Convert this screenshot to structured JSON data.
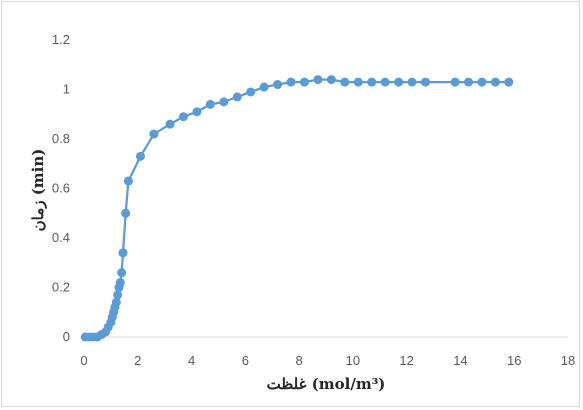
{
  "chart_data": {
    "type": "line",
    "title": "",
    "xlabel": "غلظت (mol/m³)",
    "ylabel": "زمان (min)",
    "xlim": [
      0,
      18
    ],
    "ylim": [
      0,
      1.2
    ],
    "x_ticks": [
      "0",
      "2",
      "4",
      "6",
      "8",
      "10",
      "12",
      "14",
      "16",
      "18"
    ],
    "y_ticks": [
      "0",
      "0.2",
      "0.4",
      "0.6",
      "0.8",
      "1",
      "1.2"
    ],
    "grid": false,
    "legend": "none",
    "series": [
      {
        "color": "#5b9bd5",
        "points": [
          [
            0.05,
            0.0
          ],
          [
            0.2,
            0.0
          ],
          [
            0.35,
            0.0
          ],
          [
            0.5,
            0.0
          ],
          [
            0.65,
            0.01
          ],
          [
            0.8,
            0.02
          ],
          [
            0.9,
            0.04
          ],
          [
            1.0,
            0.06
          ],
          [
            1.05,
            0.08
          ],
          [
            1.1,
            0.1
          ],
          [
            1.15,
            0.12
          ],
          [
            1.2,
            0.14
          ],
          [
            1.25,
            0.17
          ],
          [
            1.3,
            0.2
          ],
          [
            1.35,
            0.22
          ],
          [
            1.4,
            0.26
          ],
          [
            1.45,
            0.34
          ],
          [
            1.55,
            0.5
          ],
          [
            1.65,
            0.63
          ],
          [
            2.1,
            0.73
          ],
          [
            2.6,
            0.82
          ],
          [
            3.2,
            0.86
          ],
          [
            3.7,
            0.89
          ],
          [
            4.2,
            0.91
          ],
          [
            4.7,
            0.94
          ],
          [
            5.2,
            0.95
          ],
          [
            5.7,
            0.97
          ],
          [
            6.2,
            0.99
          ],
          [
            6.7,
            1.01
          ],
          [
            7.2,
            1.02
          ],
          [
            7.7,
            1.03
          ],
          [
            8.2,
            1.03
          ],
          [
            8.7,
            1.04
          ],
          [
            9.2,
            1.04
          ],
          [
            9.7,
            1.03
          ],
          [
            10.2,
            1.03
          ],
          [
            10.7,
            1.03
          ],
          [
            11.2,
            1.03
          ],
          [
            11.7,
            1.03
          ],
          [
            12.2,
            1.03
          ],
          [
            12.7,
            1.03
          ],
          [
            13.8,
            1.03
          ],
          [
            14.3,
            1.03
          ],
          [
            14.8,
            1.03
          ],
          [
            15.3,
            1.03
          ],
          [
            15.8,
            1.03
          ]
        ]
      }
    ]
  }
}
